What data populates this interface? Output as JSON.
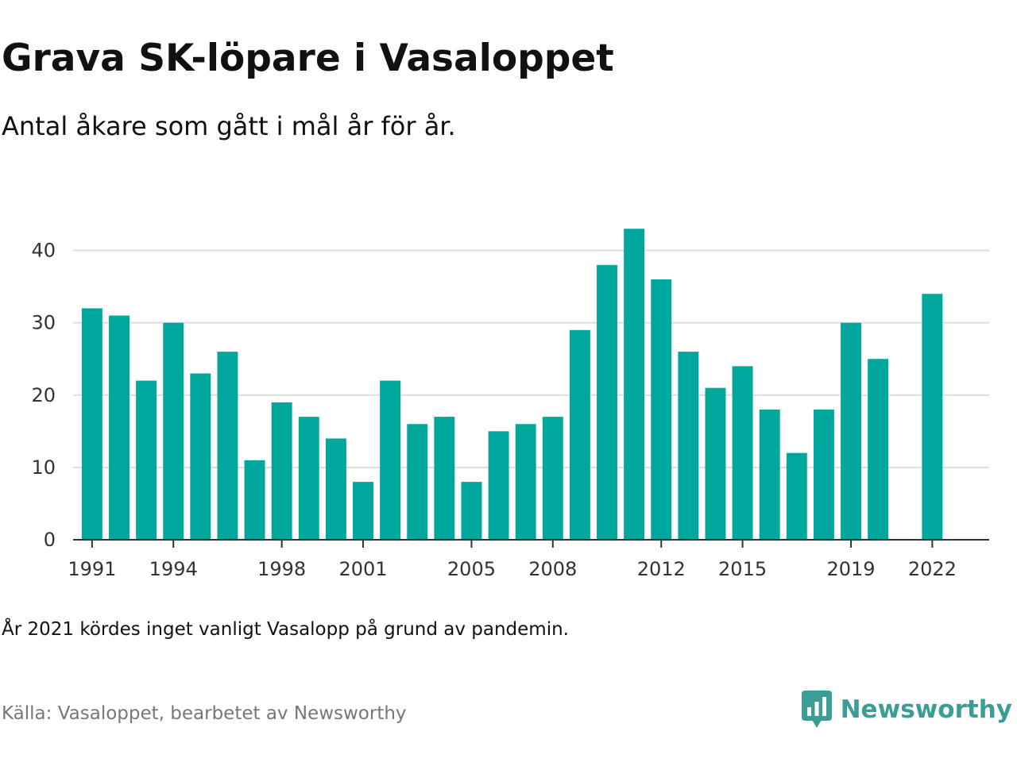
{
  "header": {
    "title": "Grava SK-löpare i Vasaloppet",
    "subtitle": "Antal åkare som gått i mål år för år."
  },
  "footer": {
    "note": "År 2021 kördes inget vanligt Vasalopp på grund av pandemin.",
    "source": "Källa: Vasaloppet, bearbetet av Newsworthy",
    "brand": "Newsworthy",
    "brand_icon": "newsworthy-chart-bubble-icon"
  },
  "colors": {
    "bar": "#00a79d",
    "grid": "#dddddd",
    "axis": "#333333",
    "brand": "#3a9d96"
  },
  "chart_data": {
    "type": "bar",
    "x": [
      1991,
      1992,
      1993,
      1994,
      1995,
      1996,
      1997,
      1998,
      1999,
      2000,
      2001,
      2002,
      2003,
      2004,
      2005,
      2006,
      2007,
      2008,
      2009,
      2010,
      2011,
      2012,
      2013,
      2014,
      2015,
      2016,
      2017,
      2018,
      2019,
      2020,
      2022
    ],
    "values": [
      32,
      31,
      22,
      30,
      23,
      26,
      11,
      19,
      17,
      14,
      8,
      22,
      16,
      17,
      8,
      15,
      16,
      17,
      29,
      38,
      43,
      36,
      26,
      21,
      24,
      18,
      12,
      18,
      30,
      25,
      34
    ],
    "x_ticks": [
      1991,
      1994,
      1998,
      2001,
      2005,
      2008,
      2012,
      2015,
      2019,
      2022
    ],
    "y_ticks": [
      0,
      10,
      20,
      30,
      40
    ],
    "ylim": [
      0,
      45
    ],
    "xlim": [
      1990.3,
      2024.1
    ],
    "grid": "horizontal",
    "legend": "none"
  }
}
